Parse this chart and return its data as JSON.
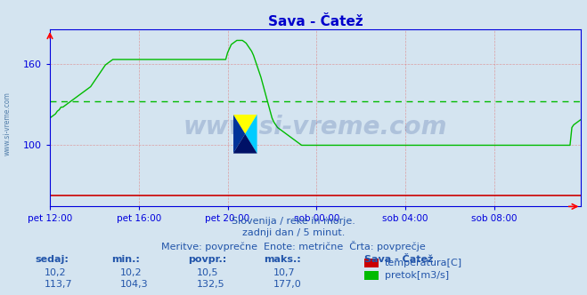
{
  "title": "Sava - Čatež",
  "title_color": "#0000cc",
  "bg_color": "#d4e4f0",
  "plot_bg_color": "#d4e4f0",
  "grid_color": "#e08080",
  "axis_color": "#0000dd",
  "x_tick_labels": [
    "pet 12:00",
    "pet 16:00",
    "pet 20:00",
    "sob 00:00",
    "sob 04:00",
    "sob 08:00"
  ],
  "x_tick_positions": [
    0,
    48,
    96,
    144,
    192,
    240
  ],
  "y_ticks": [
    100,
    160
  ],
  "ylim": [
    55,
    185
  ],
  "xlim": [
    0,
    287
  ],
  "avg_flow": 132.5,
  "subtitle1": "Slovenija / reke in morje.",
  "subtitle2": "zadnji dan / 5 minut.",
  "subtitle3": "Meritve: povprečne  Enote: metrične  Črta: povprečje",
  "table_header": [
    "sedaj:",
    "min.:",
    "povpr.:",
    "maks.:"
  ],
  "row1_values": [
    "10,2",
    "10,2",
    "10,5",
    "10,7"
  ],
  "row2_values": [
    "113,7",
    "104,3",
    "132,5",
    "177,0"
  ],
  "station_name": "Sava - Čatež",
  "label_temp": "temperatura[C]",
  "label_flow": "pretok[m3/s]",
  "color_temp": "#cc0000",
  "color_flow": "#00bb00",
  "watermark_text": "www.si-vreme.com",
  "watermark_color": "#1a3a8a",
  "sidebar_text": "www.si-vreme.com",
  "sidebar_color": "#336699",
  "subtitle_color": "#2255aa",
  "flow_data": [
    120,
    121,
    122,
    123,
    125,
    126,
    128,
    128,
    129,
    130,
    131,
    132,
    133,
    134,
    135,
    136,
    137,
    138,
    139,
    140,
    141,
    142,
    143,
    145,
    147,
    149,
    151,
    153,
    155,
    157,
    159,
    160,
    161,
    162,
    163,
    163,
    163,
    163,
    163,
    163,
    163,
    163,
    163,
    163,
    163,
    163,
    163,
    163,
    163,
    163,
    163,
    163,
    163,
    163,
    163,
    163,
    163,
    163,
    163,
    163,
    163,
    163,
    163,
    163,
    163,
    163,
    163,
    163,
    163,
    163,
    163,
    163,
    163,
    163,
    163,
    163,
    163,
    163,
    163,
    163,
    163,
    163,
    163,
    163,
    163,
    163,
    163,
    163,
    163,
    163,
    163,
    163,
    163,
    163,
    163,
    163,
    168,
    171,
    174,
    175,
    176,
    177,
    177,
    177,
    177,
    176,
    175,
    173,
    171,
    169,
    166,
    162,
    158,
    154,
    150,
    145,
    140,
    135,
    130,
    125,
    120,
    117,
    115,
    113,
    112,
    111,
    110,
    109,
    108,
    107,
    106,
    105,
    104,
    103,
    102,
    101,
    100,
    100,
    100,
    100,
    100,
    100,
    100,
    100,
    100,
    100,
    100,
    100,
    100,
    100,
    100,
    100,
    100,
    100,
    100,
    100,
    100,
    100,
    100,
    100,
    100,
    100,
    100,
    100,
    100,
    100,
    100,
    100,
    100,
    100,
    100,
    100,
    100,
    100,
    100,
    100,
    100,
    100,
    100,
    100,
    100,
    100,
    100,
    100,
    100,
    100,
    100,
    100,
    100,
    100,
    100,
    100,
    100,
    100,
    100,
    100,
    100,
    100,
    100,
    100,
    100,
    100,
    100,
    100,
    100,
    100,
    100,
    100,
    100,
    100,
    100,
    100,
    100,
    100,
    100,
    100,
    100,
    100,
    100,
    100,
    100,
    100,
    100,
    100,
    100,
    100,
    100,
    100,
    100,
    100,
    100,
    100,
    100,
    100,
    100,
    100,
    100,
    100,
    100,
    100,
    100,
    100,
    100,
    100,
    100,
    100,
    100,
    100,
    100,
    100,
    100,
    100,
    100,
    100,
    100,
    100,
    100,
    100,
    100,
    100,
    100,
    100,
    100,
    100,
    100,
    100,
    100,
    100,
    100,
    100,
    100,
    100,
    100,
    100,
    100,
    100,
    100,
    100,
    100,
    100,
    100,
    100,
    113,
    115,
    116,
    117,
    118,
    119
  ]
}
